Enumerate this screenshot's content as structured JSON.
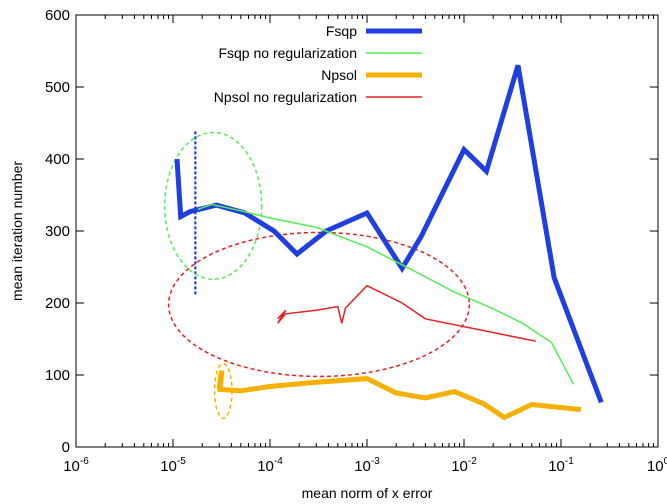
{
  "chart_data": {
    "type": "line",
    "xlabel": "mean norm of x error",
    "ylabel": "mean iteration number",
    "xscale": "log",
    "xlim": [
      1e-06,
      1
    ],
    "ylim": [
      0,
      600
    ],
    "grid": false,
    "legend_position": "top-right",
    "x_ticks": [
      {
        "base": "10",
        "exp": "-6",
        "value": 1e-06
      },
      {
        "base": "10",
        "exp": "-5",
        "value": 1e-05
      },
      {
        "base": "10",
        "exp": "-4",
        "value": 0.0001
      },
      {
        "base": "10",
        "exp": "-3",
        "value": 0.001
      },
      {
        "base": "10",
        "exp": "-2",
        "value": 0.01
      },
      {
        "base": "10",
        "exp": "-1",
        "value": 0.1
      },
      {
        "base": "10",
        "exp": "0",
        "value": 1
      }
    ],
    "y_ticks": [
      "0",
      "100",
      "200",
      "300",
      "400",
      "500",
      "600"
    ],
    "series": [
      {
        "name": "Fsqp",
        "color": "#1f3fe0",
        "width": 5,
        "points": [
          [
            1.1e-05,
            400
          ],
          [
            1.2e-05,
            320
          ],
          [
            1.5e-05,
            327
          ],
          [
            2.8e-05,
            336
          ],
          [
            5.5e-05,
            325
          ],
          [
            0.00011,
            300
          ],
          [
            0.00019,
            268
          ],
          [
            0.00038,
            300
          ],
          [
            0.001,
            325
          ],
          [
            0.0023,
            248
          ],
          [
            0.0036,
            292
          ],
          [
            0.01,
            413
          ],
          [
            0.017,
            383
          ],
          [
            0.036,
            530
          ],
          [
            0.085,
            235
          ],
          [
            0.26,
            62
          ]
        ]
      },
      {
        "name": "Fsqp no regularization",
        "color": "#55ee55",
        "width": 1.5,
        "points": [
          [
            1.8e-05,
            330
          ],
          [
            2.5e-05,
            337
          ],
          [
            5e-05,
            328
          ],
          [
            0.0001,
            318
          ],
          [
            0.0003,
            305
          ],
          [
            0.001,
            278
          ],
          [
            0.003,
            245
          ],
          [
            0.008,
            215
          ],
          [
            0.02,
            192
          ],
          [
            0.04,
            172
          ],
          [
            0.08,
            145
          ],
          [
            0.135,
            87
          ]
        ]
      },
      {
        "name": "Npsol",
        "color": "#f5b000",
        "width": 5,
        "points": [
          [
            3e-05,
            80
          ],
          [
            3.1e-05,
            100
          ],
          [
            3.2e-05,
            106
          ],
          [
            3.05e-05,
            80
          ],
          [
            5e-05,
            78
          ],
          [
            0.0001,
            84
          ],
          [
            0.0003,
            90
          ],
          [
            0.001,
            95
          ],
          [
            0.002,
            75
          ],
          [
            0.004,
            68
          ],
          [
            0.008,
            77
          ],
          [
            0.016,
            60
          ],
          [
            0.026,
            41
          ],
          [
            0.05,
            59
          ],
          [
            0.16,
            52
          ]
        ]
      },
      {
        "name": "Npsol no regularization",
        "color": "#e82020",
        "width": 1.5,
        "points": [
          [
            0.00012,
            178
          ],
          [
            0.000145,
            190
          ],
          [
            0.00012,
            172
          ],
          [
            0.000145,
            185
          ],
          [
            0.0003,
            190
          ],
          [
            0.0005,
            195
          ],
          [
            0.00055,
            172
          ],
          [
            0.0006,
            193
          ],
          [
            0.001,
            224
          ],
          [
            0.0023,
            200
          ],
          [
            0.004,
            178
          ],
          [
            0.055,
            147
          ]
        ]
      }
    ],
    "annotations": [
      {
        "kind": "vertical-dashed-line",
        "color": "#1f3fe0",
        "x": 1.7e-05,
        "y": [
          212,
          440
        ]
      },
      {
        "kind": "dashed-ellipse",
        "color": "#55ee55",
        "cx": 2.6e-05,
        "cy": 335,
        "rx_decades": 0.5,
        "ry": 102
      },
      {
        "kind": "dashed-ellipse",
        "color": "#e82020",
        "cx": 0.00032,
        "cy": 198,
        "rx_decades": 1.55,
        "ry": 100
      },
      {
        "kind": "dashed-ellipse",
        "color": "#f5b000",
        "cx": 3.3e-05,
        "cy": 78,
        "rx_decades": 0.09,
        "ry": 38
      }
    ]
  }
}
